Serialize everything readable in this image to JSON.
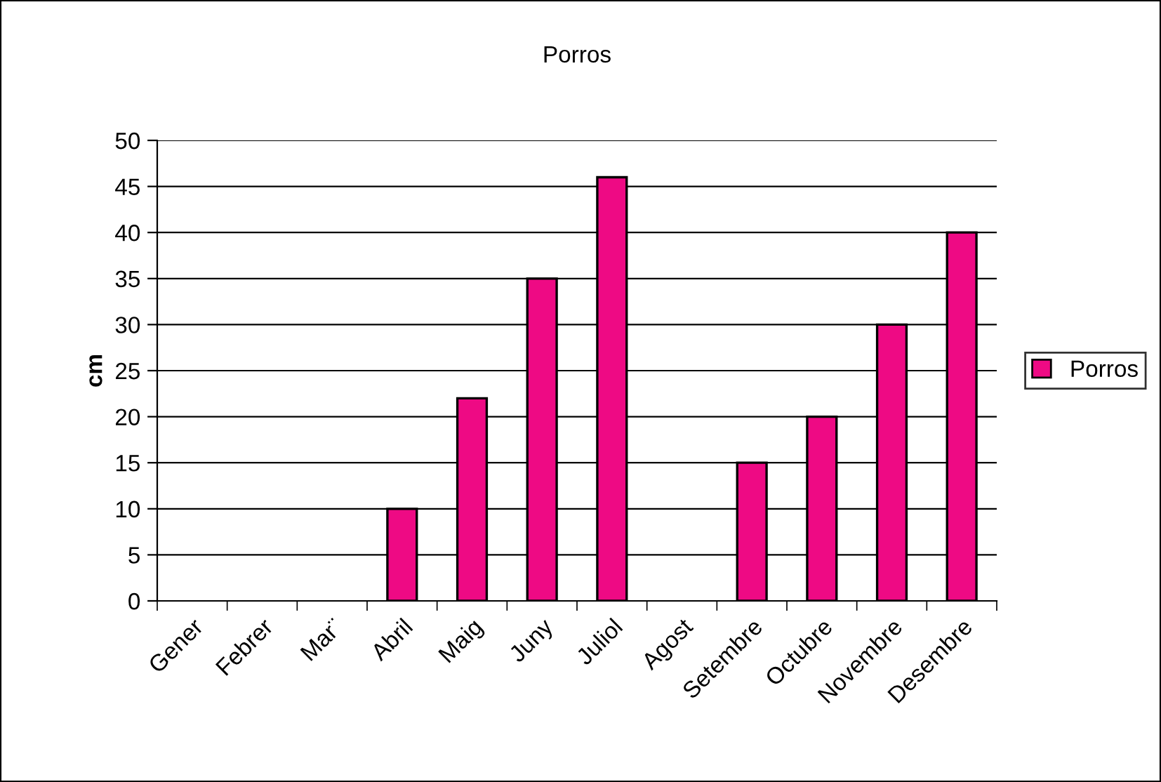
{
  "chart_data": {
    "type": "bar",
    "title": "Porros",
    "ylabel": "cm",
    "categories": [
      "Gener",
      "Febrer",
      "Mar¨",
      "Abril",
      "Maig",
      "Juny",
      "Juliol",
      "Agost",
      "Setembre",
      "Octubre",
      "Novembre",
      "Desembre"
    ],
    "series": [
      {
        "name": "Porros",
        "color": "#ee0a84",
        "values": [
          null,
          null,
          null,
          10,
          22,
          35,
          46,
          null,
          15,
          20,
          30,
          40
        ]
      }
    ],
    "ylim": [
      0,
      50
    ],
    "yticks": [
      0,
      5,
      10,
      15,
      20,
      25,
      30,
      35,
      40,
      45,
      50
    ],
    "grid": "y",
    "legend": "right"
  }
}
